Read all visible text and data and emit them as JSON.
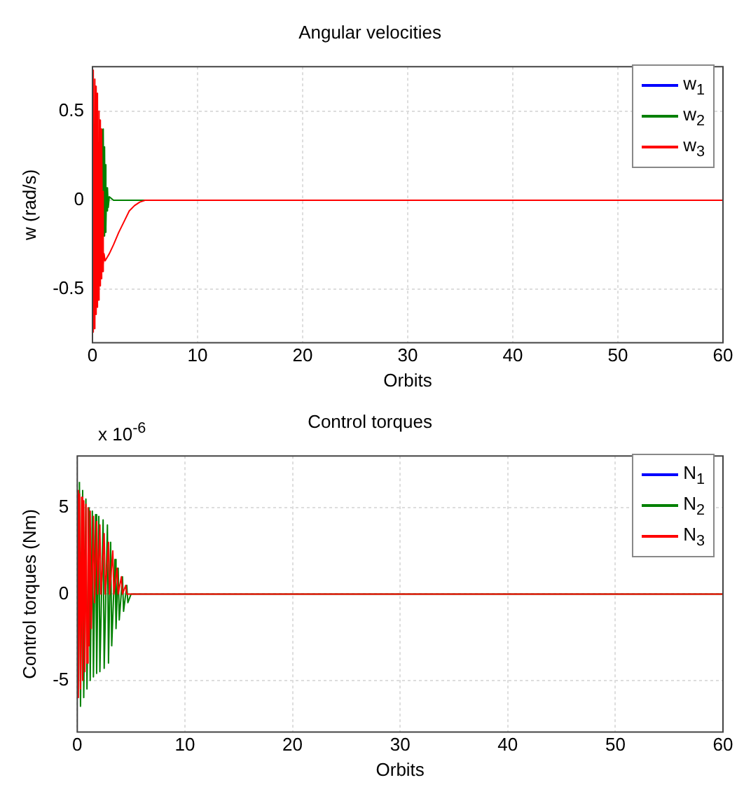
{
  "chart_data": [
    {
      "type": "line",
      "title": "Angular velocities",
      "xlabel": "Orbits",
      "ylabel": "w (rad/s)",
      "xlim": [
        0,
        60
      ],
      "xticks": [
        0,
        10,
        20,
        30,
        40,
        50,
        60
      ],
      "ylim": [
        -0.8,
        0.75
      ],
      "yticks": [
        -0.5,
        0,
        0.5
      ],
      "grid": true,
      "legend": "top right",
      "series": [
        {
          "name": "w$_{1}$",
          "color": "#0000ff"
        },
        {
          "name": "w$_{2}$",
          "color": "#008000",
          "x": [
            0.95,
            1.0,
            1.05,
            1.1,
            1.15,
            1.2,
            1.25,
            1.3,
            1.35,
            1.4,
            1.45,
            1.5,
            1.6,
            2,
            60
          ],
          "values": [
            0.4,
            -0.2,
            0.38,
            -0.2,
            0.3,
            -0.18,
            0.2,
            -0.15,
            0.07,
            -0.06,
            0.07,
            -0.04,
            0.02,
            0,
            0
          ]
        },
        {
          "name": "w$_{3}$",
          "color": "#ff0000",
          "x": [
            0,
            0.05,
            0.1,
            0.15,
            0.2,
            0.25,
            0.3,
            0.35,
            0.4,
            0.45,
            0.5,
            0.55,
            0.6,
            0.65,
            0.7,
            0.75,
            0.8,
            0.85,
            0.9,
            0.95,
            1.0,
            1.05,
            1.1,
            1.2,
            1.4,
            1.6,
            2,
            2.5,
            3,
            3.5,
            4,
            4.5,
            5,
            10,
            60
          ],
          "values": [
            0.73,
            -0.74,
            0.72,
            -0.72,
            0.68,
            -0.68,
            0.64,
            -0.64,
            0.6,
            -0.6,
            0.55,
            -0.56,
            0.5,
            -0.52,
            0.45,
            -0.48,
            0.4,
            -0.44,
            0.35,
            -0.4,
            0.05,
            -0.36,
            -0.3,
            -0.34,
            -0.32,
            -0.3,
            -0.25,
            -0.18,
            -0.12,
            -0.06,
            -0.03,
            -0.01,
            0,
            0,
            0
          ]
        }
      ]
    },
    {
      "type": "line",
      "title": "Control torques",
      "xlabel": "Orbits",
      "ylabel": "Control torques (Nm)",
      "annotations": [
        "x 10$^{-6}$"
      ],
      "xlim": [
        0,
        60
      ],
      "xticks": [
        0,
        10,
        20,
        30,
        40,
        50,
        60
      ],
      "ylim": [
        -8,
        8
      ],
      "yticks": [
        -5,
        0,
        5
      ],
      "grid": true,
      "legend": "top right",
      "series": [
        {
          "name": "N$_{1}$",
          "color": "#0000ff"
        },
        {
          "name": "N$_{2}$",
          "color": "#008000",
          "x": [
            0.2,
            0.3,
            0.5,
            0.6,
            0.8,
            0.9,
            1.1,
            1.2,
            1.4,
            1.5,
            1.7,
            1.8,
            2,
            2.1,
            2.4,
            2.5,
            2.8,
            2.9,
            3.1,
            3.2,
            3.5,
            3.6,
            3.8,
            3.9,
            4.2,
            4.3,
            4.6,
            4.7,
            5,
            60
          ],
          "values": [
            6.5,
            -6.5,
            6,
            -6,
            5.5,
            -5.5,
            5,
            -5,
            4.8,
            -4.8,
            4.6,
            -4.6,
            4.5,
            -4.5,
            4.3,
            -4.3,
            4,
            -4,
            3,
            -3,
            2,
            -2,
            1.5,
            -1.5,
            1,
            -1,
            0.5,
            -0.5,
            0,
            0
          ]
        },
        {
          "name": "N$_{3}$",
          "color": "#ff0000",
          "x": [
            0,
            0.1,
            0.2,
            0.3,
            0.4,
            0.5,
            0.6,
            0.7,
            0.8,
            0.9,
            1,
            1.1,
            1.2,
            1.3,
            1.5,
            1.6,
            1.8,
            1.9,
            2.1,
            2.2,
            2.5,
            2.6,
            2.9,
            3,
            3.3,
            3.4,
            3.7,
            3.8,
            4.1,
            4.2,
            4.5,
            4.6,
            60
          ],
          "values": [
            6,
            -6,
            5.8,
            -5.5,
            5.6,
            -5,
            5.4,
            -4.5,
            5.2,
            -4,
            5,
            -3,
            4.8,
            -2,
            4.5,
            -0.5,
            4.2,
            0,
            4,
            0,
            3.5,
            0,
            3,
            0,
            2.5,
            0,
            1.5,
            0,
            1,
            0,
            0.5,
            0,
            0
          ]
        }
      ]
    }
  ]
}
